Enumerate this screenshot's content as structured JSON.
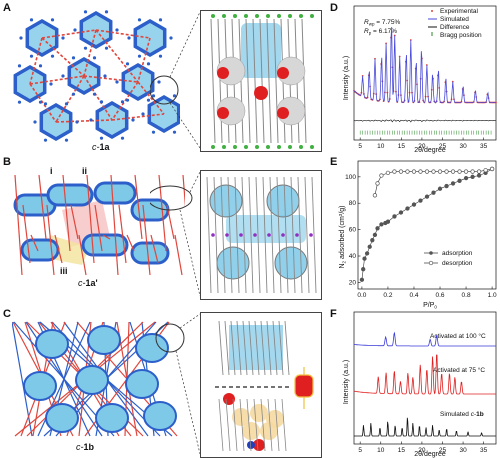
{
  "panels": {
    "A": {
      "letter": "A",
      "label": "c-1a",
      "label_prefix": "c-",
      "label_bold": "1a"
    },
    "B": {
      "letter": "B",
      "label": "c-1a'",
      "label_prefix": "c-",
      "label_bold": "1a'",
      "callouts": [
        "i",
        "ii",
        "iii"
      ]
    },
    "C": {
      "letter": "C",
      "label": "c-1b",
      "label_prefix": "c-",
      "label_bold": "1b"
    },
    "D": {
      "letter": "D"
    },
    "E": {
      "letter": "E"
    },
    "F": {
      "letter": "F"
    }
  },
  "colors": {
    "framework_blue": "#2c5fc9",
    "framework_red": "#e0463c",
    "cage_cyan": "#7ec8e8",
    "experimental": "#e0463c",
    "simulated": "#4a4ad8",
    "difference": "#111111",
    "bragg": "#2a8a2a",
    "trace_100": "#3a3ad8",
    "trace_75": "#e02020",
    "trace_sim": "#111111"
  },
  "chart_data": [
    {
      "id": "D",
      "type": "line",
      "xlabel": "2θ/degree",
      "ylabel": "Intensity (a.u.)",
      "xlim": [
        3.5,
        38
      ],
      "xticks": [
        5,
        10,
        15,
        20,
        25,
        30,
        35
      ],
      "annotations": [
        "R_wp = 7.75%",
        "R_p = 6.17%"
      ],
      "legend": [
        "Experimental",
        "Simulated",
        "Difference",
        "Bragg position"
      ],
      "legend_position": "top-right",
      "peaks": [
        {
          "x": 5.6,
          "h": 0.25
        },
        {
          "x": 7.2,
          "h": 0.35
        },
        {
          "x": 8.6,
          "h": 0.5
        },
        {
          "x": 10.2,
          "h": 0.55
        },
        {
          "x": 11.3,
          "h": 0.7
        },
        {
          "x": 12.6,
          "h": 0.95
        },
        {
          "x": 13.4,
          "h": 0.8
        },
        {
          "x": 14.6,
          "h": 0.55
        },
        {
          "x": 16.2,
          "h": 0.6
        },
        {
          "x": 17.3,
          "h": 0.75
        },
        {
          "x": 18.6,
          "h": 0.5
        },
        {
          "x": 19.9,
          "h": 0.65
        },
        {
          "x": 21.2,
          "h": 0.45
        },
        {
          "x": 22.6,
          "h": 0.35
        },
        {
          "x": 24.0,
          "h": 0.4
        },
        {
          "x": 25.8,
          "h": 0.3
        },
        {
          "x": 27.5,
          "h": 0.25
        },
        {
          "x": 30.0,
          "h": 0.2
        },
        {
          "x": 33.0,
          "h": 0.15
        },
        {
          "x": 36.0,
          "h": 0.12
        }
      ]
    },
    {
      "id": "E",
      "type": "scatter",
      "xlabel": "P/P0",
      "ylabel": "N2 adsorbed (cm3/g)",
      "xlim": [
        -0.03,
        1.03
      ],
      "ylim": [
        15,
        112
      ],
      "xticks": [
        0.0,
        0.2,
        0.4,
        0.6,
        0.8,
        1.0
      ],
      "yticks": [
        20,
        40,
        60,
        80,
        100
      ],
      "legend_position": "center-right",
      "series": [
        {
          "name": "adsorption",
          "marker": "filled",
          "x": [
            0.0,
            0.01,
            0.02,
            0.04,
            0.06,
            0.08,
            0.1,
            0.12,
            0.15,
            0.18,
            0.2,
            0.25,
            0.3,
            0.35,
            0.4,
            0.45,
            0.5,
            0.55,
            0.6,
            0.65,
            0.7,
            0.75,
            0.8,
            0.85,
            0.9,
            0.95,
            1.0
          ],
          "y": [
            22,
            30,
            38,
            42,
            47,
            52,
            56,
            61,
            64,
            65,
            66,
            70,
            73,
            76,
            79,
            82,
            85,
            88,
            91,
            93,
            95,
            97,
            99,
            100,
            101,
            103,
            106
          ]
        },
        {
          "name": "desorption",
          "marker": "open",
          "x": [
            0.1,
            0.12,
            0.15,
            0.2,
            0.25,
            0.3,
            0.35,
            0.4,
            0.45,
            0.5,
            0.55,
            0.6,
            0.65,
            0.7,
            0.75,
            0.8,
            0.85,
            0.9,
            0.95,
            1.0
          ],
          "y": [
            86,
            95,
            101,
            103,
            104,
            104,
            104,
            104,
            104,
            104,
            104,
            104,
            104,
            104,
            104,
            104,
            104,
            104,
            105,
            106
          ]
        }
      ]
    },
    {
      "id": "F",
      "type": "line",
      "xlabel": "2θ/degree",
      "ylabel": "Intensity (a.u.)",
      "xlim": [
        3.5,
        38
      ],
      "xticks": [
        5,
        10,
        15,
        20,
        25,
        30,
        35
      ],
      "series": [
        {
          "name": "Activated at 100 °C",
          "peaks": [
            {
              "x": 11.2,
              "h": 0.4
            },
            {
              "x": 13.3,
              "h": 0.6
            },
            {
              "x": 22.0,
              "h": 0.3
            },
            {
              "x": 23.6,
              "h": 0.5
            }
          ]
        },
        {
          "name": "Activated at 75 °C",
          "peaks": [
            {
              "x": 9.4,
              "h": 0.4
            },
            {
              "x": 11.3,
              "h": 0.5
            },
            {
              "x": 13.3,
              "h": 0.55
            },
            {
              "x": 14.8,
              "h": 0.3
            },
            {
              "x": 16.6,
              "h": 0.5
            },
            {
              "x": 17.8,
              "h": 0.4
            },
            {
              "x": 19.6,
              "h": 0.7
            },
            {
              "x": 21.2,
              "h": 0.6
            },
            {
              "x": 22.6,
              "h": 0.9
            },
            {
              "x": 23.6,
              "h": 1.0
            },
            {
              "x": 24.8,
              "h": 0.5
            },
            {
              "x": 26.7,
              "h": 0.5
            },
            {
              "x": 28.0,
              "h": 0.4
            },
            {
              "x": 29.6,
              "h": 0.3
            }
          ]
        },
        {
          "name": "Simulated c-1b",
          "peaks": [
            {
              "x": 5.8,
              "h": 0.5
            },
            {
              "x": 7.6,
              "h": 0.6
            },
            {
              "x": 9.8,
              "h": 0.4
            },
            {
              "x": 11.7,
              "h": 0.7
            },
            {
              "x": 13.5,
              "h": 0.5
            },
            {
              "x": 15.2,
              "h": 0.4
            },
            {
              "x": 16.5,
              "h": 0.9
            },
            {
              "x": 17.8,
              "h": 0.6
            },
            {
              "x": 19.4,
              "h": 0.5
            },
            {
              "x": 21.0,
              "h": 0.4
            },
            {
              "x": 22.6,
              "h": 0.5
            },
            {
              "x": 24.2,
              "h": 0.3
            },
            {
              "x": 26.0,
              "h": 0.35
            },
            {
              "x": 28.4,
              "h": 0.25
            },
            {
              "x": 31.2,
              "h": 0.2
            },
            {
              "x": 34.5,
              "h": 0.15
            }
          ]
        }
      ]
    }
  ]
}
